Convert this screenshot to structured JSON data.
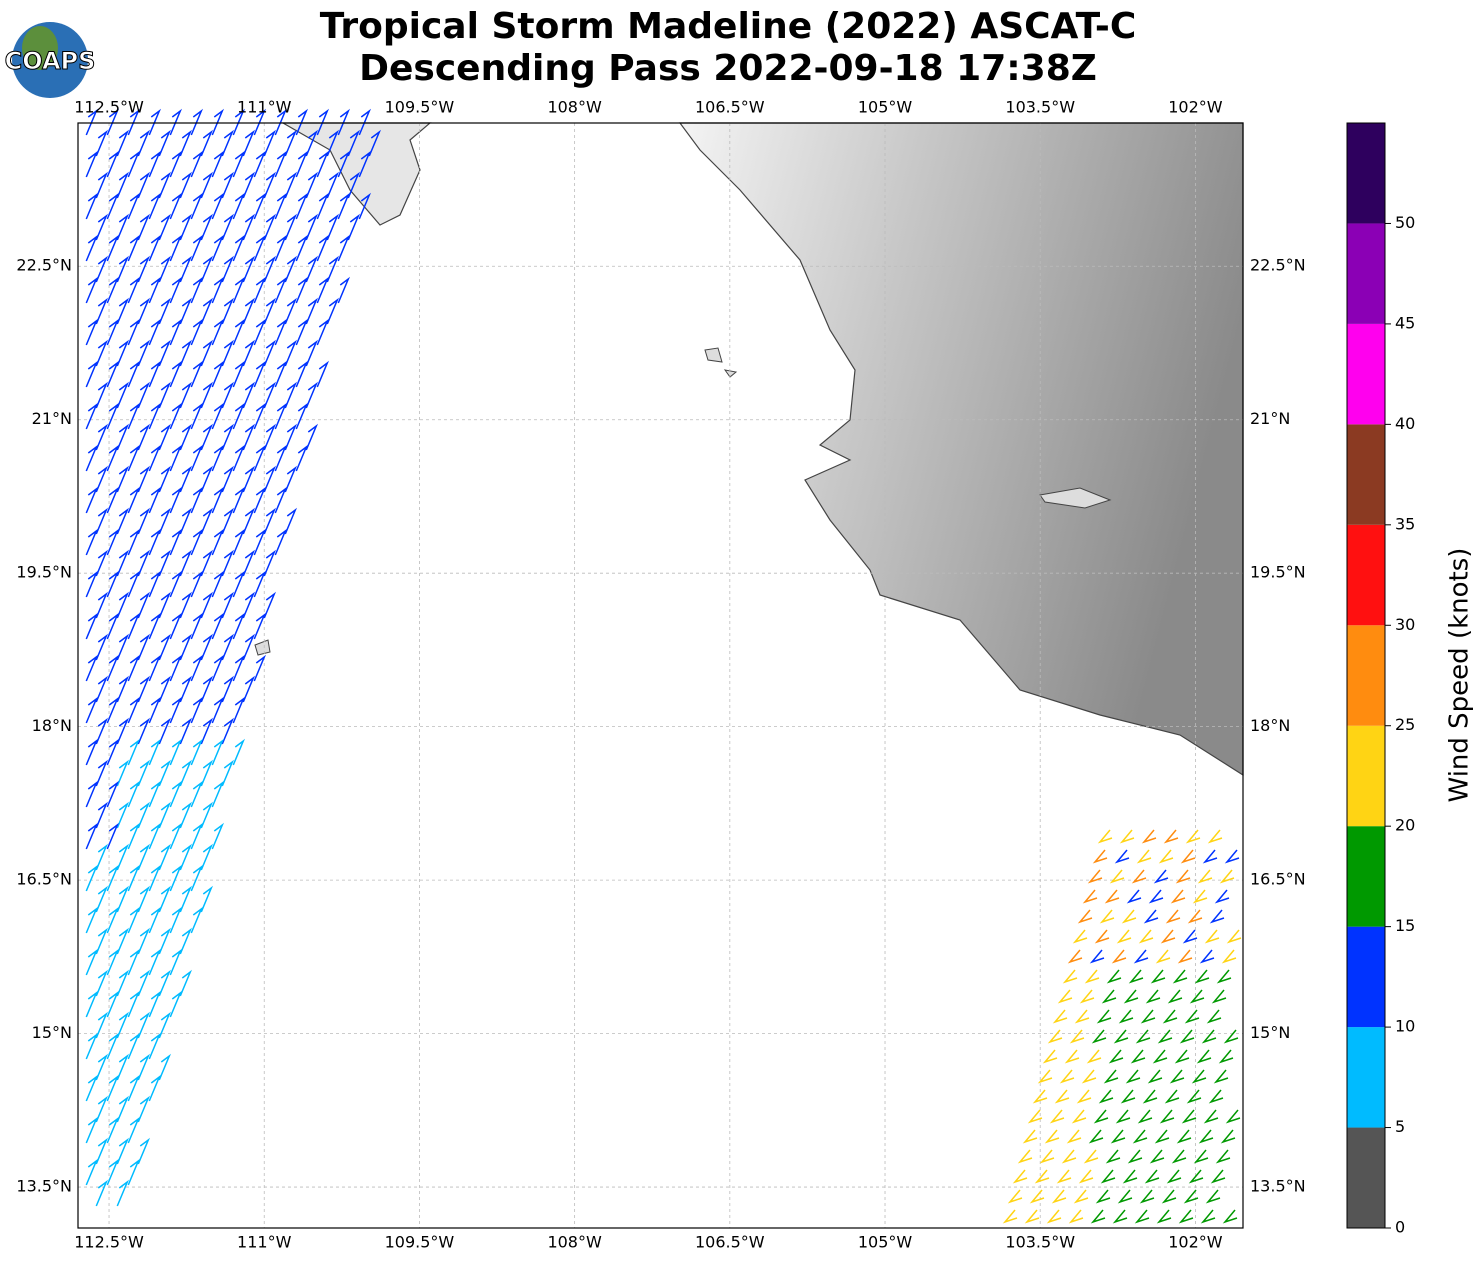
{
  "logo": "COAPS",
  "map": {
    "title": [
      "Tropical Storm Madeline (2022) ASCAT-C",
      "Descending Pass 2022-09-18 17:38Z"
    ],
    "xlim": [
      -112.8,
      -101.54
    ],
    "ylim": [
      13.1,
      23.9
    ],
    "xticks": [
      {
        "value": -112.5,
        "label": "112.5°W"
      },
      {
        "value": -111,
        "label": "111°W"
      },
      {
        "value": -109.5,
        "label": "109.5°W"
      },
      {
        "value": -108,
        "label": "108°W"
      },
      {
        "value": -106.5,
        "label": "106.5°W"
      },
      {
        "value": -105,
        "label": "105°W"
      },
      {
        "value": -103.5,
        "label": "103.5°W"
      },
      {
        "value": -102,
        "label": "102°W"
      }
    ],
    "yticks": [
      {
        "value": 13.5,
        "label": "13.5°N"
      },
      {
        "value": 15,
        "label": "15°N"
      },
      {
        "value": 16.5,
        "label": "16.5°N"
      },
      {
        "value": 18,
        "label": "18°N"
      },
      {
        "value": 19.5,
        "label": "19.5°N"
      },
      {
        "value": 21,
        "label": "21°N"
      },
      {
        "value": 22.5,
        "label": "22.5°N"
      }
    ],
    "grid": true
  },
  "colorbar": {
    "label": "Wind Speed (knots)",
    "lim": [
      0,
      55
    ],
    "bounds": [
      0,
      5,
      10,
      15,
      20,
      25,
      30,
      35,
      40,
      45,
      50,
      55
    ],
    "colors": [
      "#555555",
      "#00bbff",
      "#0033ff",
      "#009900",
      "#ffd414",
      "#ff8c0f",
      "#ff1010",
      "#8b3a22",
      "#ff00ee",
      "#8b00b5",
      "#2e005e"
    ],
    "ticks": [
      0,
      5,
      10,
      15,
      20,
      25,
      30,
      35,
      40,
      45,
      50
    ]
  }
}
